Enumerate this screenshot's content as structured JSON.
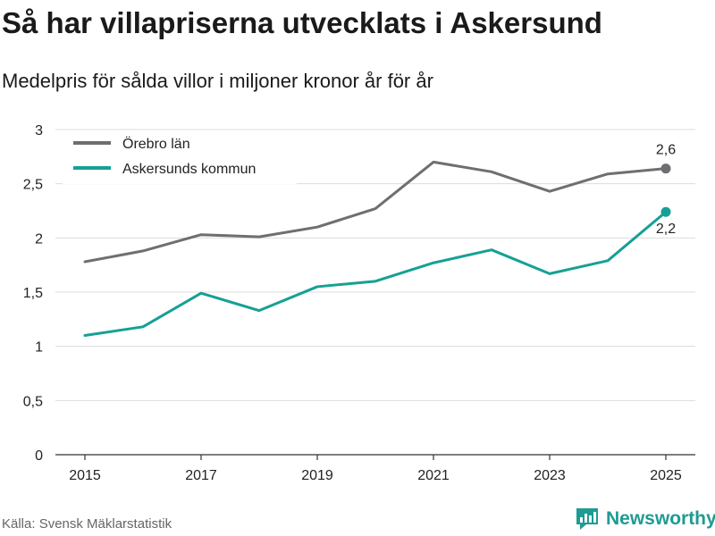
{
  "header": {
    "title": "Så har villapriserna utvecklats i Askersund",
    "subtitle": "Medelpris för sålda villor i miljoner kronor år för år"
  },
  "footer": {
    "source": "Källa: Svensk Mäklarstatistik",
    "brand": "Newsworthy"
  },
  "colors": {
    "series_orebro": "#6e6e73",
    "series_askersund": "#16a095",
    "grid": "#dcdcdc",
    "brand": "#1f9b93"
  },
  "icons": {
    "brand_logo": "newsworthy-logo-icon"
  },
  "chart_data": {
    "type": "line",
    "title": "Så har villapriserna utvecklats i Askersund",
    "subtitle": "Medelpris för sålda villor i miljoner kronor år för år",
    "xlabel": "",
    "ylabel": "",
    "x": [
      2015,
      2016,
      2017,
      2018,
      2019,
      2020,
      2021,
      2022,
      2023,
      2024,
      2025
    ],
    "xticks": [
      "2015",
      "2017",
      "2019",
      "2021",
      "2023",
      "2025"
    ],
    "ylim": [
      0,
      3
    ],
    "yticks": [
      0,
      0.5,
      1,
      1.5,
      2,
      2.5,
      3
    ],
    "ytick_labels": [
      "0",
      "0,5",
      "1",
      "1,5",
      "2",
      "2,5",
      "3"
    ],
    "grid": true,
    "legend_position": "top-left",
    "series": [
      {
        "name": "Örebro län",
        "values": [
          1.78,
          1.88,
          2.03,
          2.01,
          2.1,
          2.27,
          2.7,
          2.61,
          2.43,
          2.59,
          2.64
        ],
        "end_label": "2,6"
      },
      {
        "name": "Askersunds kommun",
        "values": [
          1.1,
          1.18,
          1.49,
          1.33,
          1.55,
          1.6,
          1.77,
          1.89,
          1.67,
          1.79,
          2.24
        ],
        "end_label": "2,2"
      }
    ]
  }
}
